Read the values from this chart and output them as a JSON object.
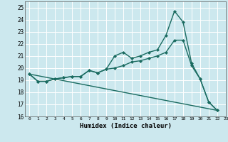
{
  "title": "",
  "xlabel": "Humidex (Indice chaleur)",
  "xlim": [
    -0.5,
    23
  ],
  "ylim": [
    16,
    25.5
  ],
  "yticks": [
    16,
    17,
    18,
    19,
    20,
    21,
    22,
    23,
    24,
    25
  ],
  "xticks": [
    0,
    1,
    2,
    3,
    4,
    5,
    6,
    7,
    8,
    9,
    10,
    11,
    12,
    13,
    14,
    15,
    16,
    17,
    18,
    19,
    20,
    21,
    22,
    23
  ],
  "bg_color": "#cce8ee",
  "grid_color": "#ffffff",
  "line_color": "#1a6b60",
  "lines": [
    {
      "x": [
        0,
        1,
        2,
        3,
        4,
        5,
        6,
        7,
        8,
        9,
        10,
        11,
        12,
        13,
        14,
        15,
        16,
        17,
        18,
        19,
        20,
        21,
        22
      ],
      "y": [
        19.5,
        18.9,
        18.9,
        19.1,
        19.2,
        19.3,
        19.3,
        19.8,
        19.6,
        19.9,
        21.0,
        21.3,
        20.8,
        21.0,
        21.3,
        21.5,
        22.7,
        24.7,
        23.8,
        20.4,
        19.1,
        17.2,
        16.5
      ],
      "marker": "D",
      "markersize": 2.0,
      "linewidth": 1.0
    },
    {
      "x": [
        0,
        1,
        2,
        3,
        4,
        5,
        6,
        7,
        8,
        9,
        10,
        11,
        12,
        13,
        14,
        15,
        16,
        17,
        18,
        19,
        20,
        21,
        22
      ],
      "y": [
        19.5,
        18.9,
        18.9,
        19.1,
        19.2,
        19.3,
        19.3,
        19.8,
        19.6,
        19.9,
        20.0,
        20.2,
        20.5,
        20.6,
        20.8,
        21.0,
        21.3,
        22.3,
        22.3,
        20.2,
        19.1,
        17.2,
        16.5
      ],
      "marker": "D",
      "markersize": 2.0,
      "linewidth": 1.0
    },
    {
      "x": [
        0,
        22
      ],
      "y": [
        19.5,
        16.5
      ],
      "marker": null,
      "markersize": 0,
      "linewidth": 1.0
    }
  ]
}
